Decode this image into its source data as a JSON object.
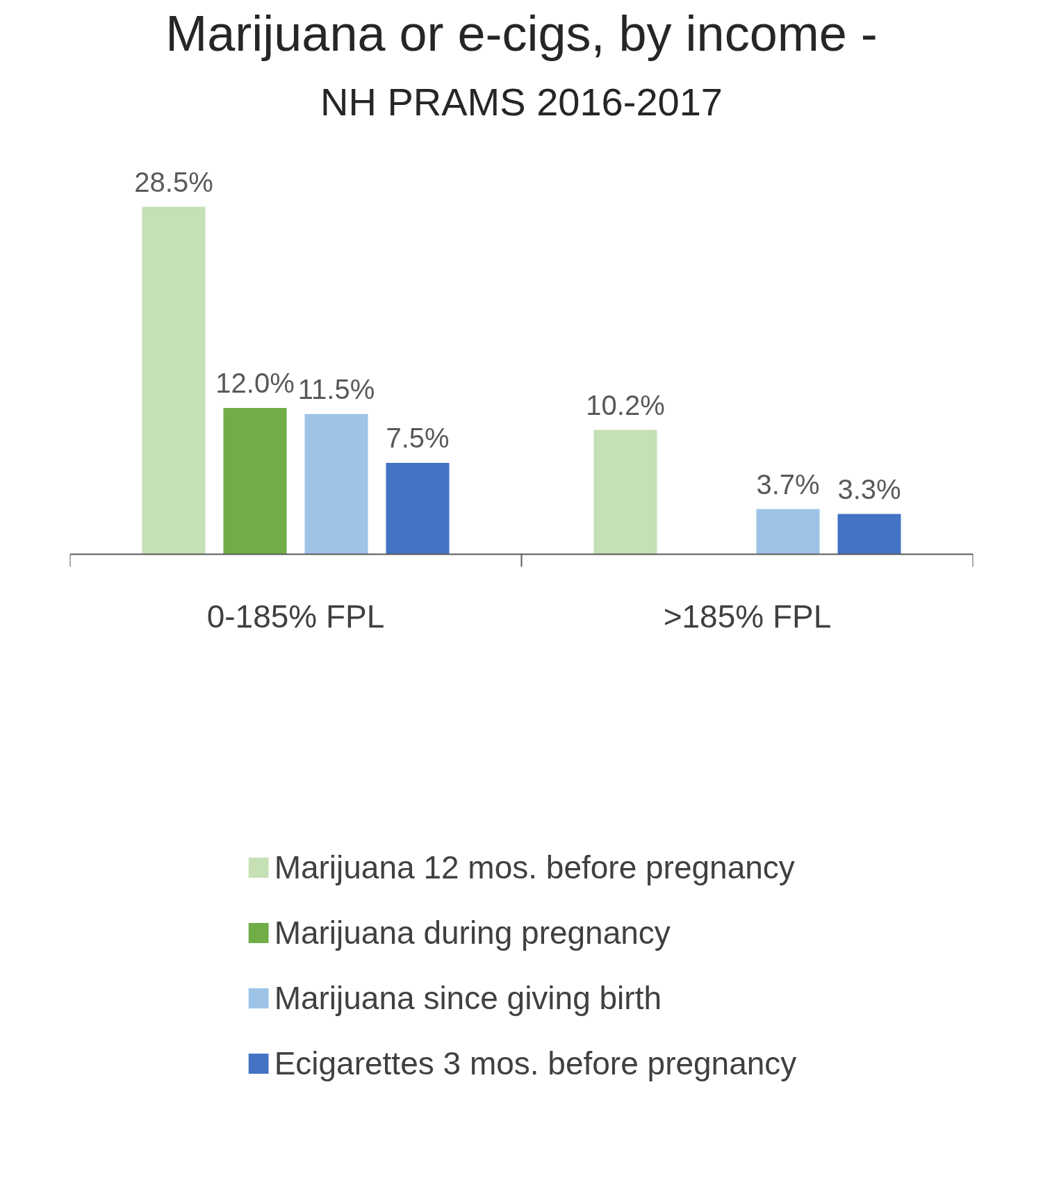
{
  "chart_data": {
    "type": "bar",
    "title": "Marijuana or e-cigs, by income -",
    "subtitle": "NH PRAMS 2016-2017",
    "categories": [
      "0-185% FPL",
      ">185% FPL"
    ],
    "series": [
      {
        "name": "Marijuana 12 mos. before pregnancy",
        "color": "#c5e0b4",
        "values": [
          28.5,
          10.2
        ],
        "value_labels": [
          "28.5%",
          "10.2%"
        ]
      },
      {
        "name": "Marijuana during pregnancy",
        "color": "#70ad47",
        "values": [
          12.0,
          null
        ],
        "value_labels": [
          "12.0%",
          null
        ]
      },
      {
        "name": "Marijuana since giving birth",
        "color": "#9dc3e6",
        "values": [
          11.5,
          3.7
        ],
        "value_labels": [
          "11.5%",
          "3.7%"
        ]
      },
      {
        "name": "Ecigarettes 3 mos. before pregnancy",
        "color": "#4472c4",
        "values": [
          7.5,
          3.3
        ],
        "value_labels": [
          "7.5%",
          "3.3%"
        ]
      }
    ],
    "legend": "bottom"
  }
}
